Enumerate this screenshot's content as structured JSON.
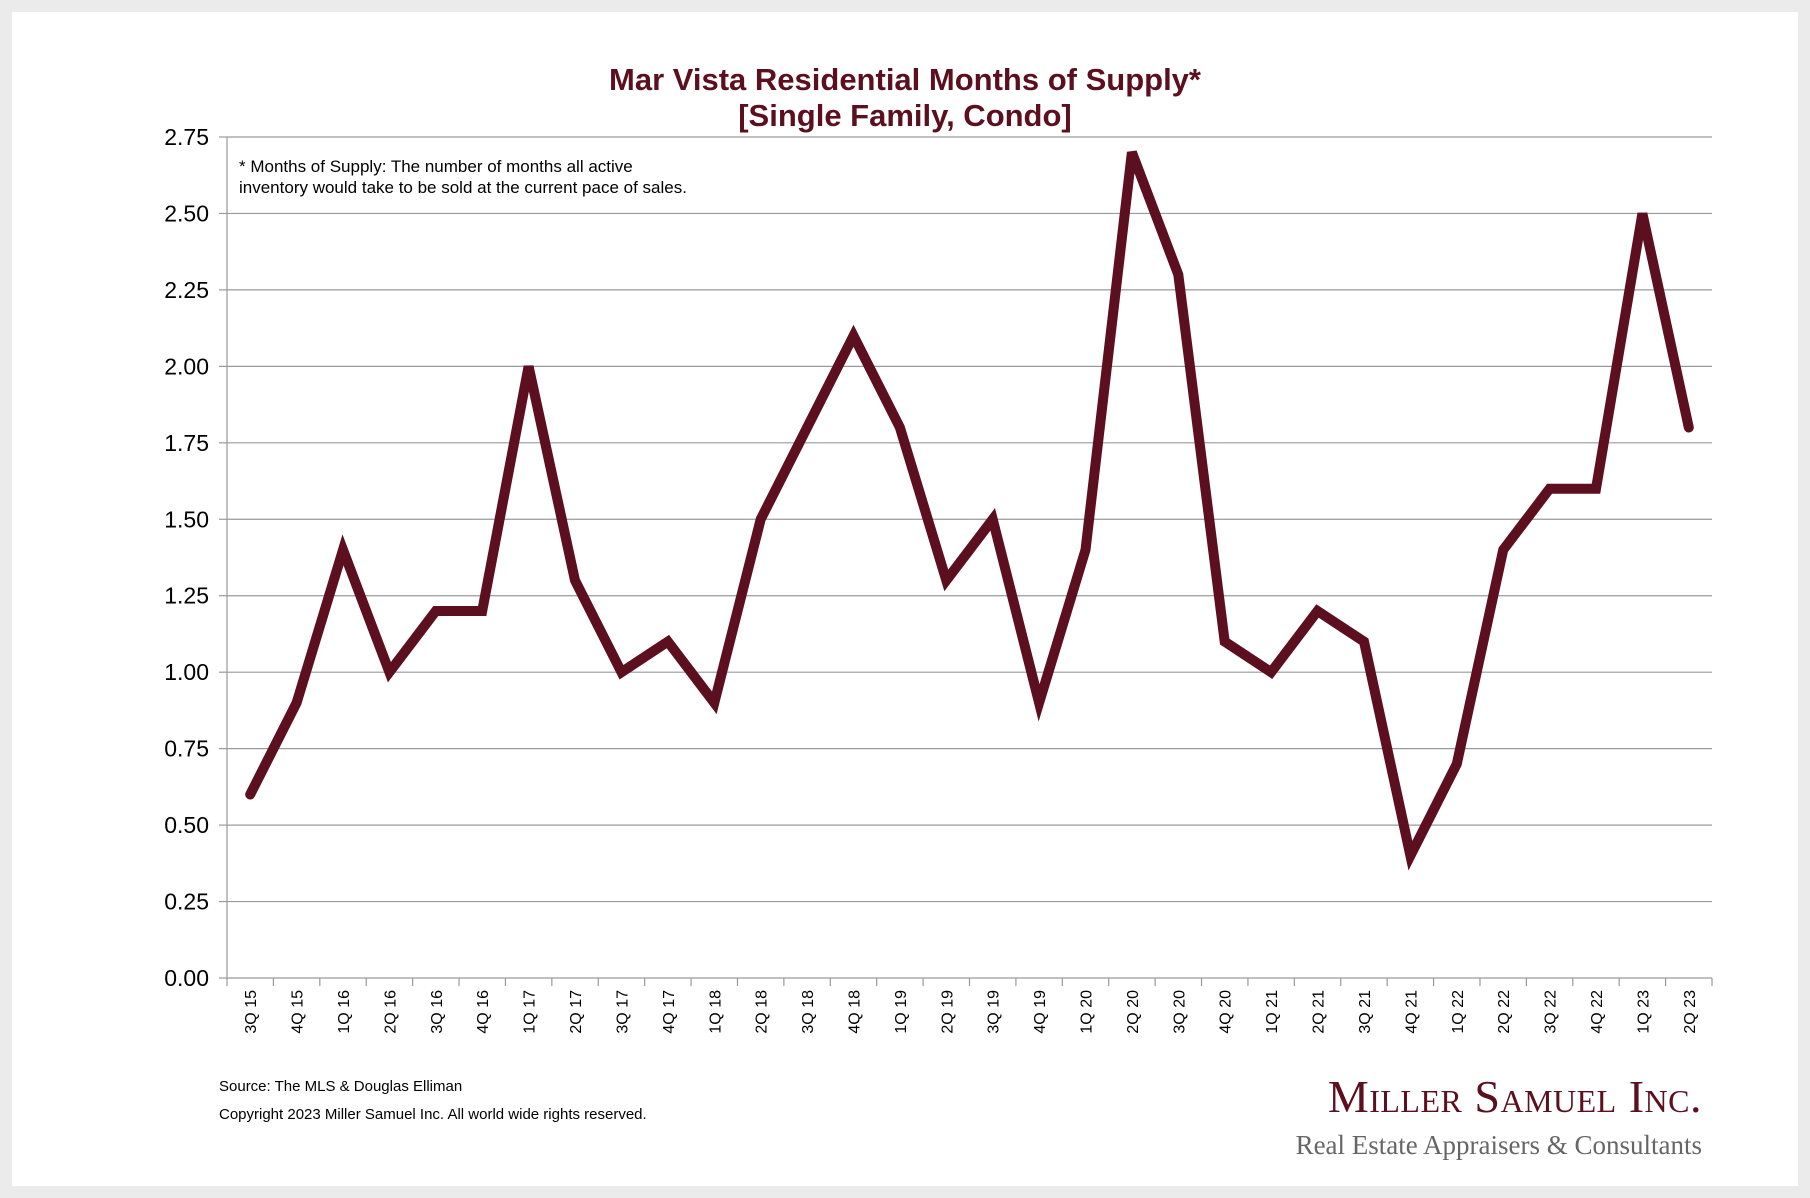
{
  "chart_data": {
    "type": "line",
    "title_lines": [
      "Mar Vista Residential Months of Supply*",
      "[Single Family, Condo]"
    ],
    "note_lines": [
      "* Months of Supply: The number of months all active",
      "inventory would take to be sold at the current pace of sales."
    ],
    "categories": [
      "3Q 15",
      "4Q 15",
      "1Q 16",
      "2Q 16",
      "3Q 16",
      "4Q 16",
      "1Q 17",
      "2Q 17",
      "3Q 17",
      "4Q 17",
      "1Q 18",
      "2Q 18",
      "3Q 18",
      "4Q 18",
      "1Q 19",
      "2Q 19",
      "3Q 19",
      "4Q 19",
      "1Q 20",
      "2Q 20",
      "3Q 20",
      "4Q 20",
      "1Q 21",
      "2Q 21",
      "3Q 21",
      "4Q 21",
      "1Q 22",
      "2Q 22",
      "3Q 22",
      "4Q 22",
      "1Q 23",
      "2Q 23"
    ],
    "values": [
      0.6,
      0.9,
      1.4,
      1.0,
      1.2,
      1.2,
      2.0,
      1.3,
      1.0,
      1.1,
      0.9,
      1.5,
      1.8,
      2.1,
      1.8,
      1.3,
      1.5,
      0.9,
      1.4,
      2.7,
      2.3,
      1.1,
      1.0,
      1.2,
      1.1,
      0.4,
      0.7,
      1.4,
      1.6,
      1.6,
      2.5,
      1.8
    ],
    "ylim": [
      0,
      2.75
    ],
    "yticks": [
      "0.00",
      "0.25",
      "0.50",
      "0.75",
      "1.00",
      "1.25",
      "1.50",
      "1.75",
      "2.00",
      "2.25",
      "2.50",
      "2.75"
    ],
    "grid": true,
    "line_color": "#5c0f1f"
  },
  "footer": {
    "source": "Source: The MLS & Douglas Elliman",
    "copyright": "Copyright 2023 Miller Samuel Inc.  All world wide rights reserved."
  },
  "logo": {
    "name": "Miller Samuel Inc.",
    "tagline": "Real Estate Appraisers & Consultants"
  }
}
